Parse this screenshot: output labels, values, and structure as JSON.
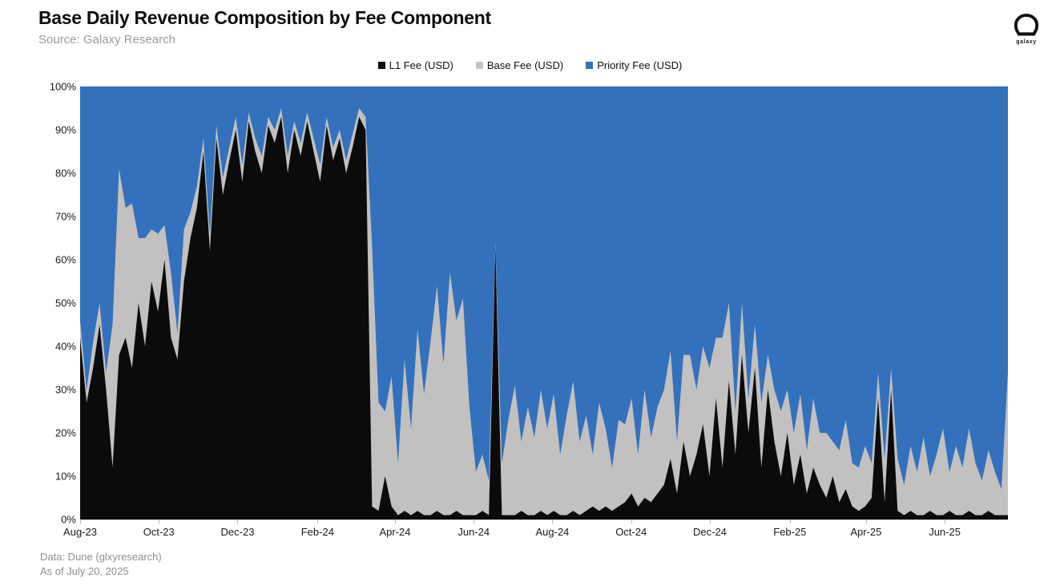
{
  "header": {
    "title": "Base Daily Revenue Composition by Fee Component",
    "source": "Source: Galaxy Research"
  },
  "logo": {
    "label": "galaxy"
  },
  "footer": {
    "line1": "Data: Dune (glxyresearch)",
    "line2": "As of July 20, 2025"
  },
  "colors": {
    "l1_fee": "#0b0b0b",
    "base_fee": "#c2c1bf",
    "priority_fee": "#3371bd",
    "legend_gray_swatch": "#c6c5c3"
  },
  "chart_data": {
    "type": "area",
    "variant": "100%-stacked",
    "title": "Base Daily Revenue Composition by Fee Component",
    "xlabel": "",
    "ylabel": "",
    "ylim": [
      0,
      100
    ],
    "grid": false,
    "legend_position": "top-center",
    "y_tick_labels_top_to_bottom": [
      "100%",
      "90%",
      "80%",
      "70%",
      "60%",
      "50%",
      "40%",
      "30%",
      "20%",
      "10%",
      "0%"
    ],
    "x_ticks": {
      "labels": [
        "Aug-23",
        "Oct-23",
        "Dec-23",
        "Feb-24",
        "Apr-24",
        "Jun-24",
        "Aug-24",
        "Oct-24",
        "Dec-24",
        "Feb-25",
        "Apr-25",
        "Jun-25"
      ],
      "day_offsets": [
        0,
        61,
        122,
        184,
        244,
        305,
        366,
        427,
        488,
        550,
        609,
        670
      ],
      "total_days": 719
    },
    "x_range": {
      "start": "2023-08-01",
      "end": "2025-07-20"
    },
    "sample_interval_days": 5,
    "stacking_note": "Values are percent of daily revenue; stack order bottom-to-top: L1 Fee, Base Fee, Priority Fee; Priority Fee = 100 - L1 - Base.",
    "series": [
      {
        "name": "L1 Fee (USD)",
        "color": "#0b0b0b",
        "values": [
          42,
          27,
          35,
          45,
          30,
          12,
          38,
          42,
          35,
          50,
          40,
          55,
          48,
          60,
          42,
          37,
          55,
          65,
          72,
          85,
          62,
          88,
          75,
          83,
          90,
          78,
          92,
          85,
          80,
          91,
          87,
          93,
          80,
          90,
          84,
          92,
          85,
          78,
          91,
          83,
          88,
          80,
          86,
          93,
          90,
          3,
          2,
          10,
          3,
          1,
          2,
          1,
          2,
          1,
          1,
          2,
          1,
          1,
          2,
          1,
          1,
          1,
          2,
          1,
          63,
          1,
          1,
          1,
          2,
          1,
          1,
          2,
          1,
          2,
          1,
          1,
          2,
          1,
          2,
          3,
          2,
          3,
          2,
          3,
          4,
          6,
          3,
          5,
          4,
          6,
          8,
          14,
          6,
          18,
          10,
          15,
          22,
          10,
          28,
          12,
          32,
          15,
          38,
          20,
          35,
          12,
          30,
          18,
          10,
          20,
          8,
          15,
          6,
          12,
          8,
          5,
          10,
          4,
          7,
          3,
          2,
          3,
          5,
          28,
          4,
          30,
          2,
          1,
          2,
          1,
          1,
          2,
          1,
          1,
          2,
          1,
          1,
          2,
          1,
          1,
          2,
          1,
          1,
          1
        ]
      },
      {
        "name": "Base Fee (USD)",
        "color": "#c2c1bf",
        "values": [
          4,
          3,
          6,
          5,
          4,
          33,
          43,
          30,
          38,
          15,
          25,
          12,
          18,
          8,
          15,
          6,
          12,
          6,
          5,
          3,
          4,
          3,
          4,
          3,
          3,
          4,
          2,
          3,
          4,
          2,
          3,
          2,
          4,
          2,
          3,
          2,
          3,
          4,
          2,
          3,
          2,
          3,
          3,
          2,
          3,
          60,
          25,
          15,
          30,
          12,
          35,
          20,
          42,
          28,
          40,
          52,
          35,
          56,
          44,
          50,
          25,
          10,
          13,
          8,
          1,
          12,
          22,
          30,
          16,
          25,
          18,
          28,
          20,
          27,
          14,
          23,
          30,
          17,
          22,
          12,
          25,
          18,
          10,
          20,
          18,
          22,
          12,
          25,
          15,
          20,
          22,
          25,
          12,
          20,
          28,
          15,
          18,
          25,
          14,
          30,
          18,
          10,
          12,
          8,
          10,
          15,
          8,
          12,
          15,
          10,
          12,
          14,
          10,
          16,
          12,
          15,
          8,
          12,
          16,
          10,
          10,
          14,
          8,
          6,
          10,
          5,
          12,
          7,
          15,
          10,
          18,
          8,
          14,
          20,
          9,
          16,
          11,
          19,
          12,
          8,
          14,
          10,
          6,
          33
        ]
      },
      {
        "name": "Priority Fee (USD)",
        "color": "#3371bd",
        "values_rule": "remainder to 100%"
      }
    ],
    "legend": [
      {
        "label": "L1 Fee (USD)",
        "color": "#0b0b0b"
      },
      {
        "label": "Base Fee (USD)",
        "color": "#c6c5c3"
      },
      {
        "label": "Priority Fee (USD)",
        "color": "#3371bd"
      }
    ]
  }
}
